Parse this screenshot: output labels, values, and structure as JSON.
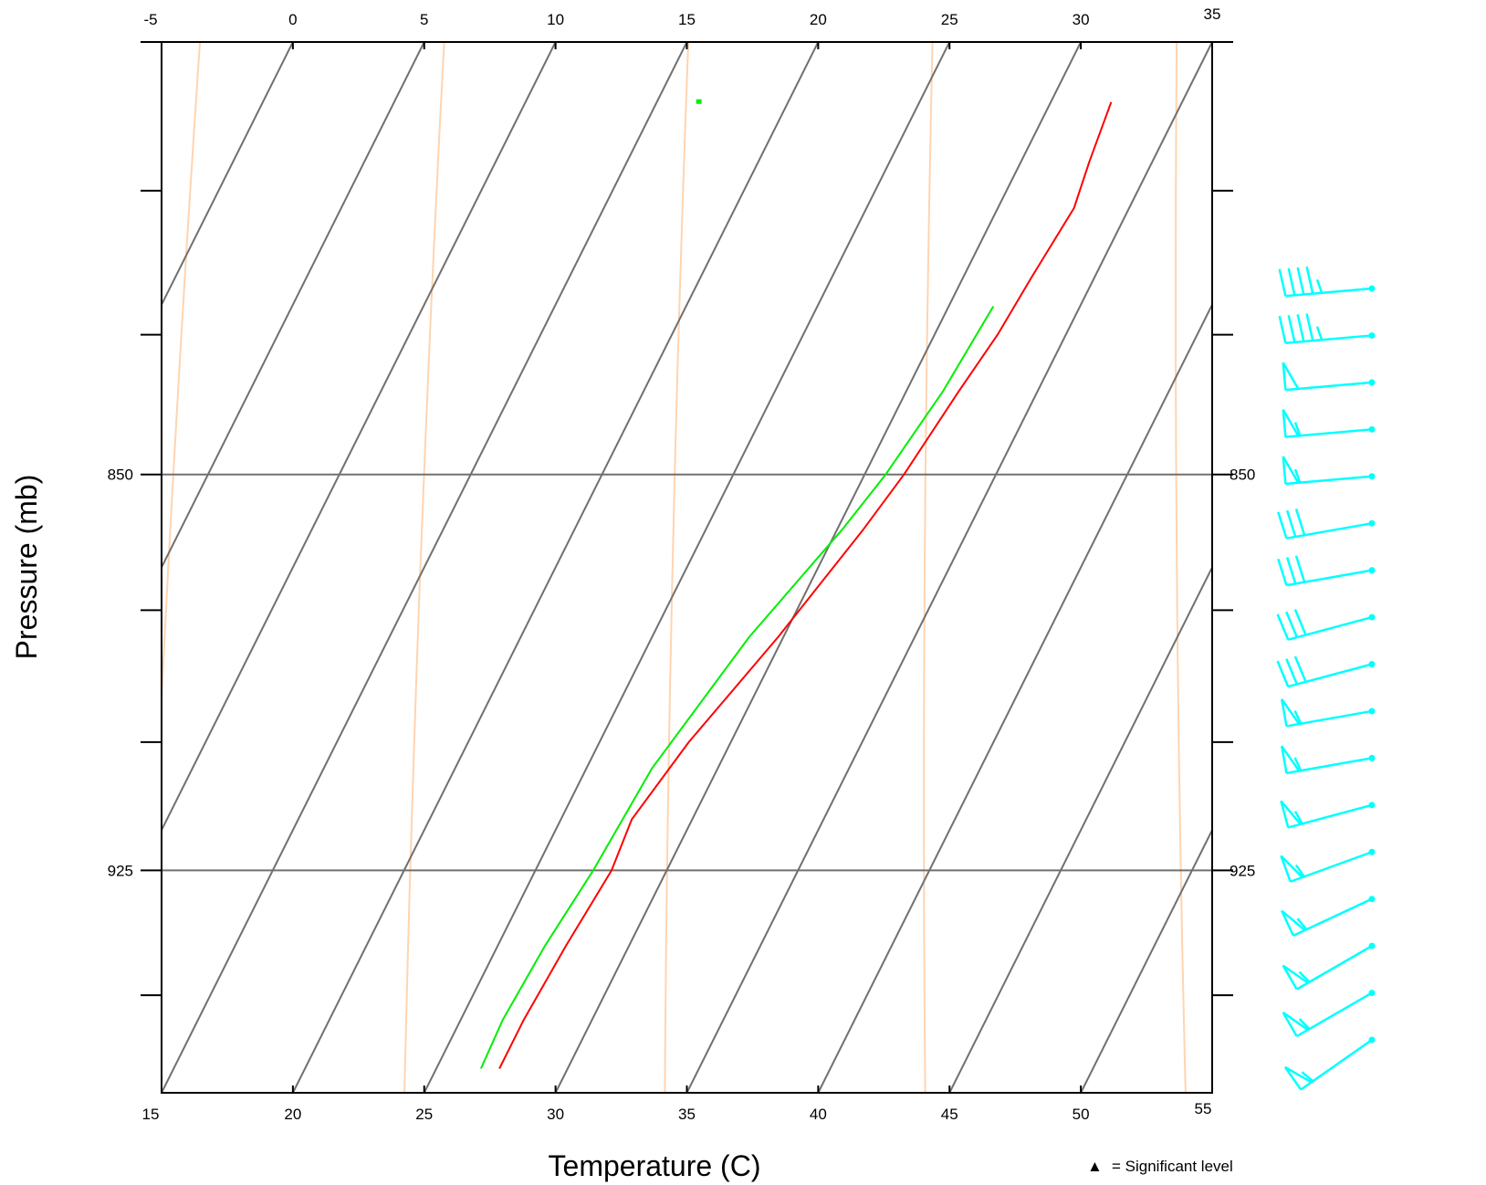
{
  "chart_data": {
    "type": "line",
    "subtype": "skew-T log-P diagram",
    "xlabel": "Temperature (C)",
    "ylabel": "Pressure (mb)",
    "top_ticks": [
      "-5",
      "0",
      "5",
      "10",
      "15",
      "20",
      "25",
      "30",
      "35"
    ],
    "bottom_ticks": [
      "15",
      "20",
      "25",
      "30",
      "35",
      "40",
      "45",
      "50",
      "55"
    ],
    "pressure_labels": [
      "850",
      "925"
    ],
    "isobars_labeled": [
      850,
      925
    ],
    "pressure_range_mb": [
      775,
      970
    ],
    "grid": true,
    "legend": {
      "symbol": "▲",
      "text": "= Significant level",
      "placement": "bottom-right"
    },
    "colors": {
      "temperature": "#ff0000",
      "dewpoint": "#00ee00",
      "isotherm": "#707070",
      "adiabat": "#ffd4b0",
      "wind_barb": "#00ffff"
    },
    "series": [
      {
        "key": "temperature",
        "points": [
          {
            "p": 965,
            "t": 27.4
          },
          {
            "p": 955,
            "t": 27.4
          },
          {
            "p": 940,
            "t": 27.6
          },
          {
            "p": 925,
            "t": 27.9
          },
          {
            "p": 915,
            "t": 27.7
          },
          {
            "p": 900,
            "t": 28.4
          },
          {
            "p": 880,
            "t": 29.8
          },
          {
            "p": 860,
            "t": 31.0
          },
          {
            "p": 850,
            "t": 31.5
          },
          {
            "p": 835,
            "t": 32.0
          },
          {
            "p": 825,
            "t": 32.4
          },
          {
            "p": 815,
            "t": 32.6
          },
          {
            "p": 803,
            "t": 32.9
          },
          {
            "p": 795,
            "t": 32.6
          },
          {
            "p": 785,
            "t": 32.3
          }
        ]
      },
      {
        "key": "dewpoint",
        "points": [
          {
            "p": 965,
            "t": 26.7
          },
          {
            "p": 955,
            "t": 26.6
          },
          {
            "p": 940,
            "t": 26.8
          },
          {
            "p": 925,
            "t": 27.2
          },
          {
            "p": 905,
            "t": 27.5
          },
          {
            "p": 880,
            "t": 28.7
          },
          {
            "p": 860,
            "t": 30.2
          },
          {
            "p": 850,
            "t": 30.8
          },
          {
            "p": 835,
            "t": 31.4
          },
          {
            "p": 820,
            "t": 31.7
          }
        ]
      }
    ],
    "isolated_dewpoint_point": {
      "p": 785,
      "t": 16.6
    },
    "wind_barbs": [
      {
        "p": 965,
        "dir": 235,
        "spd": 55
      },
      {
        "p": 955,
        "dir": 240,
        "spd": 55
      },
      {
        "p": 945,
        "dir": 240,
        "spd": 55
      },
      {
        "p": 933,
        "dir": 245,
        "spd": 55
      },
      {
        "p": 920,
        "dir": 250,
        "spd": 55
      },
      {
        "p": 908,
        "dir": 255,
        "spd": 55
      },
      {
        "p": 895,
        "dir": 260,
        "spd": 55
      },
      {
        "p": 883,
        "dir": 260,
        "spd": 55
      },
      {
        "p": 872,
        "dir": 255,
        "spd": 30
      },
      {
        "p": 860,
        "dir": 255,
        "spd": 30
      },
      {
        "p": 849,
        "dir": 260,
        "spd": 30
      },
      {
        "p": 838,
        "dir": 260,
        "spd": 30
      },
      {
        "p": 826,
        "dir": 265,
        "spd": 55
      },
      {
        "p": 816,
        "dir": 265,
        "spd": 55
      },
      {
        "p": 805,
        "dir": 265,
        "spd": 50
      },
      {
        "p": 795,
        "dir": 265,
        "spd": 45
      },
      {
        "p": 785,
        "dir": 265,
        "spd": 45
      }
    ]
  }
}
